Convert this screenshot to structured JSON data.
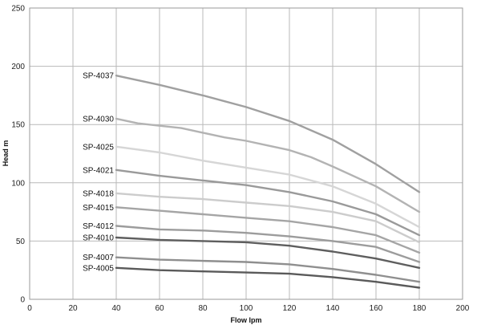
{
  "chart_data": {
    "type": "line",
    "title": "",
    "xlabel": "Flow  lpm",
    "ylabel": "Head  m",
    "xlim": [
      0,
      200
    ],
    "ylim": [
      0,
      250
    ],
    "xticks": [
      0,
      20,
      40,
      60,
      80,
      100,
      120,
      140,
      160,
      180,
      200
    ],
    "yticks": [
      0,
      50,
      100,
      150,
      200,
      250
    ],
    "grid": true,
    "legend": "inline labels at left end of each curve",
    "series": [
      {
        "name": "SP-4037",
        "color": "#a0a0a0",
        "x": [
          40,
          60,
          80,
          100,
          120,
          140,
          160,
          180
        ],
        "y": [
          192,
          184,
          175,
          165,
          153,
          137,
          116,
          92
        ]
      },
      {
        "name": "SP-4030",
        "color": "#b3b3b3",
        "x": [
          40,
          50,
          60,
          70,
          80,
          90,
          100,
          110,
          120,
          130,
          140,
          160,
          180
        ],
        "y": [
          155,
          151,
          149,
          147,
          143,
          139,
          136,
          132,
          128,
          122,
          114,
          97,
          75
        ]
      },
      {
        "name": "SP-4025",
        "color": "#d6d6d6",
        "x": [
          40,
          60,
          80,
          100,
          120,
          140,
          160,
          180
        ],
        "y": [
          131,
          126,
          119,
          113,
          107,
          97,
          82,
          62
        ]
      },
      {
        "name": "SP-4021",
        "color": "#9a9a9a",
        "x": [
          40,
          60,
          80,
          100,
          120,
          140,
          160,
          180
        ],
        "y": [
          111,
          106,
          102,
          98,
          92,
          84,
          73,
          55
        ]
      },
      {
        "name": "SP-4018",
        "color": "#cccccc",
        "x": [
          40,
          60,
          80,
          100,
          120,
          140,
          160,
          180
        ],
        "y": [
          91,
          88,
          86,
          83,
          80,
          75,
          67,
          49
        ]
      },
      {
        "name": "SP-4015",
        "color": "#a5a5a5",
        "x": [
          40,
          60,
          80,
          100,
          120,
          140,
          160,
          180
        ],
        "y": [
          79,
          76,
          73,
          70,
          67,
          62,
          55,
          40
        ]
      },
      {
        "name": "SP-4012",
        "color": "#9c9c9c",
        "x": [
          40,
          60,
          80,
          100,
          120,
          140,
          160,
          180
        ],
        "y": [
          63,
          60,
          59,
          57,
          54,
          50,
          45,
          32
        ]
      },
      {
        "name": "SP-4010",
        "color": "#5e5e5e",
        "x": [
          40,
          60,
          80,
          100,
          120,
          140,
          160,
          180
        ],
        "y": [
          53,
          51,
          50,
          49,
          46,
          41,
          35,
          27
        ]
      },
      {
        "name": "SP-4007",
        "color": "#8f8f8f",
        "x": [
          40,
          60,
          80,
          100,
          120,
          140,
          160,
          180
        ],
        "y": [
          36,
          34,
          33,
          32,
          30,
          26,
          21,
          15
        ]
      },
      {
        "name": "SP-4005",
        "color": "#5a5a5a",
        "x": [
          40,
          60,
          80,
          100,
          120,
          140,
          160,
          180
        ],
        "y": [
          27,
          25,
          24,
          23,
          22,
          19,
          15,
          10
        ]
      }
    ]
  }
}
